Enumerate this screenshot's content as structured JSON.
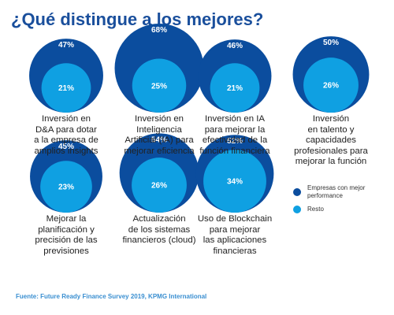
{
  "title": "¿Qué distingue a los mejores?",
  "chart_data": {
    "type": "bubble",
    "unit": "%",
    "categories": [
      "Inversión en D&A para dotar a la empresa de amplios insights",
      "Inversión en Inteligencia Artificial (IA) para mejorar eficiencia",
      "Inversión en IA para mejorar la efectividad de la función financiera",
      "Inversión en talento y capacidades profesionales para mejorar la función",
      "Mejorar la planificación y precisión de las previsiones",
      "Actualización de los sistemas financieros (cloud)",
      "Uso de Blockchain para mejorar las aplicaciones financieras"
    ],
    "series": [
      {
        "name": "Empresas con mejor performance",
        "color": "#0b4d9e",
        "values": [
          47,
          68,
          46,
          50,
          45,
          54,
          52
        ]
      },
      {
        "name": "Resto",
        "color": "#0fa0e2",
        "values": [
          21,
          25,
          21,
          26,
          23,
          26,
          34
        ]
      }
    ]
  },
  "captions": [
    "Inversión en\nD&A para dotar\na la empresa de\namplios insights",
    "Inversión en\nInteligencia\nArtificial (IA) para\nmejorar eficiencia",
    "Inversión en IA\npara mejorar la\nefectividad de la\nfunción financiera",
    "Inversión\nen talento y\ncapacidades\nprofesionales para\nmejorar la función",
    "Mejorar la\nplanificación y\nprecisión de las\nprevisiones",
    "Actualización\nde los sistemas\nfinancieros (cloud)",
    "Uso de Blockchain\npara mejorar\nlas aplicaciones\nfinancieras"
  ],
  "legend": {
    "top_label": "Empresas con mejor\nperformance",
    "bottom_label": "Resto"
  },
  "source": "Fuente: Future Ready Finance Survey 2019, KPMG International"
}
